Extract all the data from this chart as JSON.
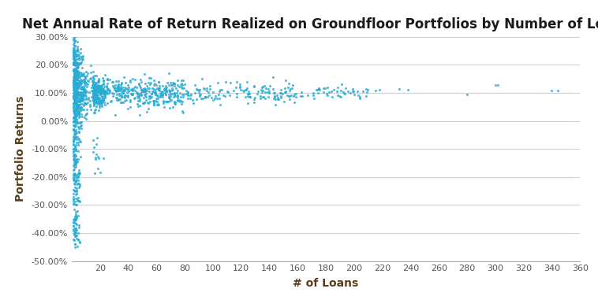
{
  "title": "Net Annual Rate of Return Realized on Groundfloor Portfolios by Number of Loans",
  "xlabel": "# of Loans",
  "ylabel": "Portfolio Returns",
  "dot_color": "#29ABD4",
  "dot_size": 5,
  "xlim": [
    0,
    360
  ],
  "ylim": [
    -0.5,
    0.3
  ],
  "xticks": [
    0,
    20,
    40,
    60,
    80,
    100,
    120,
    140,
    160,
    180,
    200,
    220,
    240,
    260,
    280,
    300,
    320,
    340,
    360
  ],
  "yticks": [
    -0.5,
    -0.4,
    -0.3,
    -0.2,
    -0.1,
    0.0,
    0.1,
    0.2,
    0.3
  ],
  "background_color": "#ffffff",
  "grid_color": "#d0d0d0",
  "title_fontsize": 12,
  "axis_label_fontsize": 10,
  "tick_fontsize": 8
}
